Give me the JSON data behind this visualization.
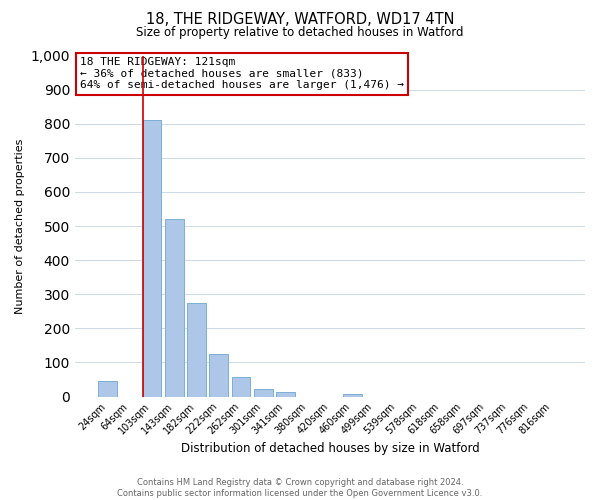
{
  "title": "18, THE RIDGEWAY, WATFORD, WD17 4TN",
  "subtitle": "Size of property relative to detached houses in Watford",
  "xlabel": "Distribution of detached houses by size in Watford",
  "ylabel": "Number of detached properties",
  "bar_labels": [
    "24sqm",
    "64sqm",
    "103sqm",
    "143sqm",
    "182sqm",
    "222sqm",
    "262sqm",
    "301sqm",
    "341sqm",
    "380sqm",
    "420sqm",
    "460sqm",
    "499sqm",
    "539sqm",
    "578sqm",
    "618sqm",
    "658sqm",
    "697sqm",
    "737sqm",
    "776sqm",
    "816sqm"
  ],
  "bar_values": [
    46,
    0,
    810,
    520,
    275,
    125,
    57,
    22,
    12,
    0,
    0,
    8,
    0,
    0,
    0,
    0,
    0,
    0,
    0,
    0,
    0
  ],
  "bar_color": "#aec6e8",
  "bar_edge_color": "#7aafd4",
  "ylim": [
    0,
    1000
  ],
  "yticks": [
    0,
    100,
    200,
    300,
    400,
    500,
    600,
    700,
    800,
    900,
    1000
  ],
  "property_line_index": 2,
  "property_label": "18 THE RIDGEWAY: 121sqm",
  "annotation_line1": "← 36% of detached houses are smaller (833)",
  "annotation_line2": "64% of semi-detached houses are larger (1,476) →",
  "line_color": "#cc0000",
  "box_edge_color": "#cc0000",
  "footer1": "Contains HM Land Registry data © Crown copyright and database right 2024.",
  "footer2": "Contains public sector information licensed under the Open Government Licence v3.0.",
  "grid_color": "#ccd9e8",
  "background_color": "#ffffff"
}
